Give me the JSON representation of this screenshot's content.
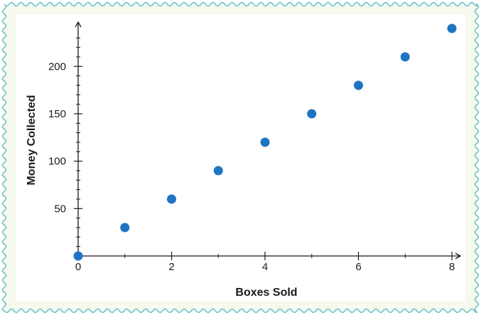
{
  "chart_data": {
    "type": "scatter",
    "title": "",
    "xlabel": "Boxes Sold",
    "ylabel": "Money Collected",
    "xlim": [
      0,
      8
    ],
    "ylim": [
      0,
      240
    ],
    "x_ticks": [
      0,
      2,
      4,
      6,
      8
    ],
    "y_ticks": [
      50,
      100,
      150,
      200
    ],
    "grid": false,
    "points": [
      {
        "x": 0,
        "y": 0
      },
      {
        "x": 1,
        "y": 30
      },
      {
        "x": 2,
        "y": 60
      },
      {
        "x": 3,
        "y": 90
      },
      {
        "x": 4,
        "y": 120
      },
      {
        "x": 5,
        "y": 150
      },
      {
        "x": 6,
        "y": 180
      },
      {
        "x": 7,
        "y": 210
      },
      {
        "x": 8,
        "y": 240
      }
    ]
  },
  "colors": {
    "frame_border": "#6fc3cc",
    "frame_background": "#f6f9ee",
    "plot_background": "#ffffff",
    "point": "#1f75c2",
    "axis": "#1a1a1a"
  }
}
